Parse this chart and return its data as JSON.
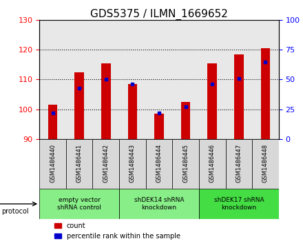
{
  "title": "GDS5375 / ILMN_1669652",
  "samples": [
    "GSM1486440",
    "GSM1486441",
    "GSM1486442",
    "GSM1486443",
    "GSM1486444",
    "GSM1486445",
    "GSM1486446",
    "GSM1486447",
    "GSM1486448"
  ],
  "counts": [
    101.5,
    112.5,
    115.5,
    108.5,
    98.5,
    102.5,
    115.5,
    118.5,
    120.5
  ],
  "percentiles": [
    22,
    43,
    50,
    46,
    22,
    27,
    46,
    51,
    65
  ],
  "ylim_left": [
    90,
    130
  ],
  "ylim_right": [
    0,
    100
  ],
  "yticks_left": [
    90,
    100,
    110,
    120,
    130
  ],
  "yticks_right": [
    0,
    25,
    50,
    75,
    100
  ],
  "bar_color": "#cc0000",
  "dot_color": "#0000cc",
  "bar_bottom": 90,
  "groups": [
    {
      "label": "empty vector\nshRNA control",
      "start": 0,
      "end": 3,
      "color": "#88ee88"
    },
    {
      "label": "shDEK14 shRNA\nknockdown",
      "start": 3,
      "end": 6,
      "color": "#88ee88"
    },
    {
      "label": "shDEK17 shRNA\nknockdown",
      "start": 6,
      "end": 9,
      "color": "#44dd44"
    }
  ],
  "protocol_label": "protocol",
  "legend_count_label": "count",
  "legend_pct_label": "percentile rank within the sample",
  "title_fontsize": 11,
  "tick_fontsize": 8,
  "bar_width": 0.35,
  "plot_bg": "#e8e8e8",
  "sample_cell_bg": "#d8d8d8"
}
